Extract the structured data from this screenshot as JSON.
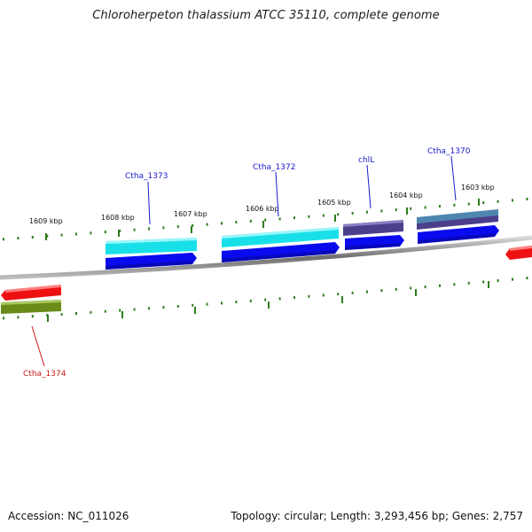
{
  "title": "Chloroherpeton thalassium ATCC 35110, complete genome",
  "footer": {
    "accession": "Accession: NC_011026",
    "summary": "Topology: circular; Length: 3,293,456 bp; Genes: 2,757"
  },
  "colors": {
    "backbone": "#7f7f7f",
    "tick": "#2e7d1e",
    "label_forward": "#1a1acc",
    "label_reverse": "#cc1a1a",
    "cds_forward": "#0a0aee",
    "cds_reverse": "#ee1111",
    "cyan": "#19e0e8",
    "purple": "#4b3f8c",
    "steel": "#4f86b0",
    "olive": "#6a8a1a"
  },
  "ticks": [
    {
      "label": "1609 kbp"
    },
    {
      "label": "1608 kbp"
    },
    {
      "label": "1607 kbp"
    },
    {
      "label": "1606 kbp"
    },
    {
      "label": "1605 kbp"
    },
    {
      "label": "1604 kbp"
    },
    {
      "label": "1603 kbp"
    }
  ],
  "genes": [
    {
      "label": "Ctha_1373",
      "strand": "forward"
    },
    {
      "label": "Ctha_1372",
      "strand": "forward"
    },
    {
      "label": "chlL",
      "strand": "forward"
    },
    {
      "label": "Ctha_1370",
      "strand": "forward"
    },
    {
      "label": "Ctha_1374",
      "strand": "reverse"
    }
  ]
}
